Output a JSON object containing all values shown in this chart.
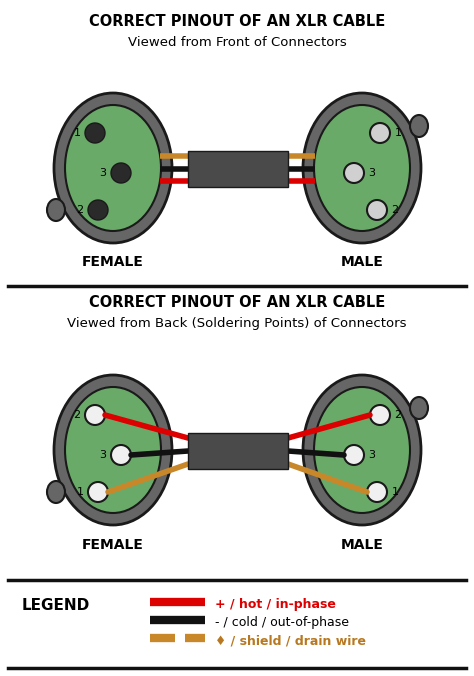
{
  "title": "CORRECT PINOUT OF AN XLR CABLE",
  "subtitle_front": "Viewed from Front of Connectors",
  "subtitle_back": "Viewed from Back (Soldering Points) of Connectors",
  "bg_color": "#ffffff",
  "connector_outer_color": "#666666",
  "connector_inner_color": "#6aaa68",
  "connector_border_color": "#1a1a1a",
  "pin_dark_color": "#2a2a2a",
  "pin_light_color": "#d0d0d0",
  "pin_white_color": "#f0f0f0",
  "red_wire": "#dd0000",
  "black_wire": "#111111",
  "shield_wire": "#c8882a",
  "cable_box_color": "#4a4a4a",
  "female_label": "FEMALE",
  "male_label": "MALE",
  "legend_title": "LEGEND",
  "legend_red_text": "+ / hot / in-phase",
  "legend_black_text": "- / cold / out-of-phase",
  "legend_shield_text": "♦ / shield / drain wire",
  "divider_color": "#111111",
  "label_color": "#000000",
  "legend_red_color": "#dd0000",
  "legend_shield_color": "#b87820",
  "fig_w": 4.74,
  "fig_h": 6.76,
  "dpi": 100
}
